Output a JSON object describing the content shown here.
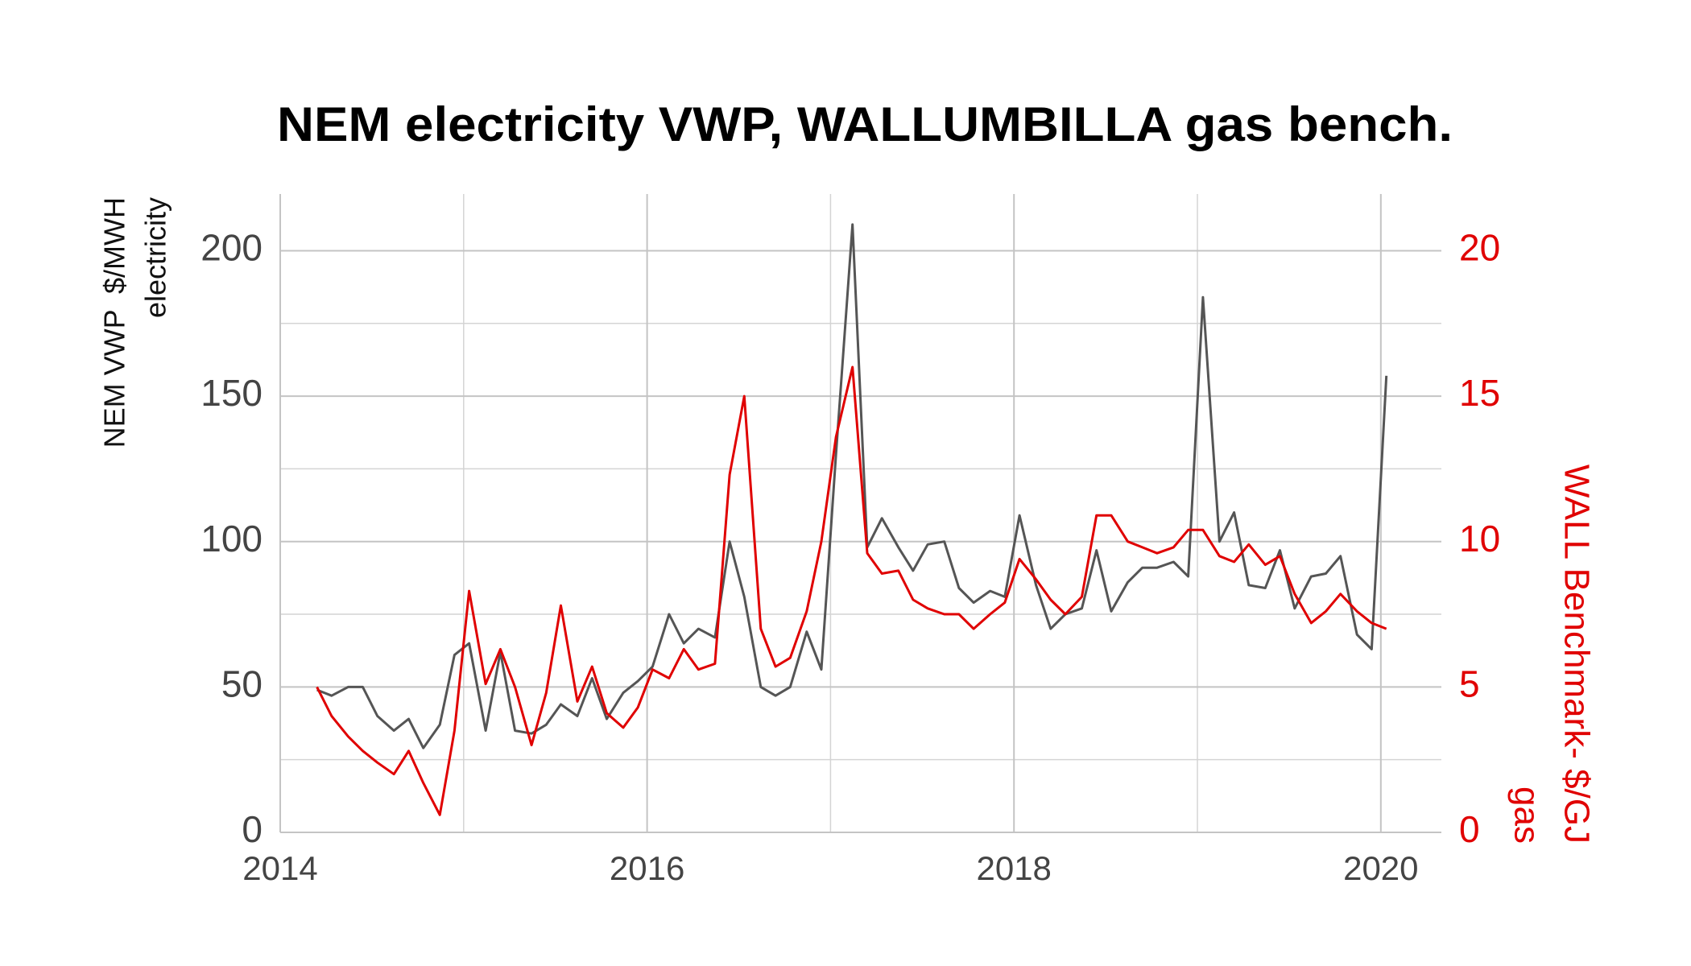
{
  "chart_data": {
    "type": "line",
    "title": "NEM electricity VWP, WALLUMBILLA gas bench.",
    "ylabel": [
      "NEM VWP  $/MWH",
      "electricity"
    ],
    "y2label": [
      "WALL Benchmark- $/GJ",
      "gas"
    ],
    "x": [
      2014.2,
      2014.28,
      2014.37,
      2014.45,
      2014.53,
      2014.62,
      2014.7,
      2014.78,
      2014.87,
      2014.95,
      2015.03,
      2015.12,
      2015.2,
      2015.28,
      2015.37,
      2015.45,
      2015.53,
      2015.62,
      2015.7,
      2015.78,
      2015.87,
      2015.95,
      2016.03,
      2016.12,
      2016.2,
      2016.28,
      2016.37,
      2016.45,
      2016.53,
      2016.62,
      2016.7,
      2016.78,
      2016.87,
      2016.95,
      2017.03,
      2017.12,
      2017.2,
      2017.28,
      2017.37,
      2017.45,
      2017.53,
      2017.62,
      2017.7,
      2017.78,
      2017.87,
      2017.95,
      2018.03,
      2018.12,
      2018.2,
      2018.28,
      2018.37,
      2018.45,
      2018.53,
      2018.62,
      2018.7,
      2018.78,
      2018.87,
      2018.95,
      2019.03,
      2019.12,
      2019.2,
      2019.28,
      2019.37,
      2019.45,
      2019.53,
      2019.62,
      2019.7,
      2019.78,
      2019.87,
      2019.95,
      2020.03
    ],
    "series": [
      {
        "name": "electricity",
        "color": "#555555",
        "axis": "y",
        "values": [
          49,
          47,
          50,
          50,
          40,
          35,
          39,
          29,
          37,
          61,
          65,
          35,
          62,
          35,
          34,
          37,
          44,
          40,
          53,
          39,
          48,
          52,
          57,
          75,
          65,
          70,
          67,
          100,
          81,
          50,
          47,
          50,
          69,
          56,
          130,
          209,
          98,
          108,
          98,
          90,
          99,
          100,
          84,
          79,
          83,
          81,
          109,
          85,
          70,
          75,
          77,
          97,
          76,
          86,
          91,
          91,
          93,
          88,
          184,
          100,
          110,
          85,
          84,
          97,
          77,
          88,
          89,
          95,
          68,
          63,
          157
        ]
      },
      {
        "name": "gas",
        "color": "#e00000",
        "axis": "y2",
        "values": [
          5.0,
          4.0,
          3.3,
          2.8,
          2.4,
          2.0,
          2.8,
          1.7,
          0.6,
          3.5,
          8.3,
          5.1,
          6.3,
          5.0,
          3.0,
          4.8,
          7.8,
          4.5,
          5.7,
          4.1,
          3.6,
          4.3,
          5.6,
          5.3,
          6.3,
          5.6,
          5.8,
          12.3,
          15.0,
          7.0,
          5.7,
          6.0,
          7.6,
          10.0,
          13.6,
          16.0,
          9.6,
          8.9,
          9.0,
          8.0,
          7.7,
          7.5,
          7.5,
          7.0,
          7.5,
          7.9,
          9.4,
          8.7,
          8.0,
          7.5,
          8.1,
          10.9,
          10.9,
          10.0,
          9.8,
          9.6,
          9.8,
          10.4,
          10.4,
          9.5,
          9.3,
          9.9,
          9.2,
          9.5,
          8.2,
          7.2,
          7.6,
          8.2,
          7.6,
          7.2,
          7.0
        ]
      }
    ],
    "xlim": [
      2014,
      2020.33
    ],
    "xticks": [
      2014,
      2016,
      2018,
      2020
    ],
    "xminor": [
      2015,
      2017,
      2019
    ],
    "ylim": [
      0,
      219.5
    ],
    "yticks": [
      0,
      50,
      100,
      150,
      200
    ],
    "yminor": [
      25,
      75,
      125,
      175
    ],
    "y2lim": [
      0,
      21.95
    ],
    "y2ticks": [
      0,
      5,
      10,
      15,
      20
    ],
    "y2color": "#e00000",
    "grid": true
  }
}
